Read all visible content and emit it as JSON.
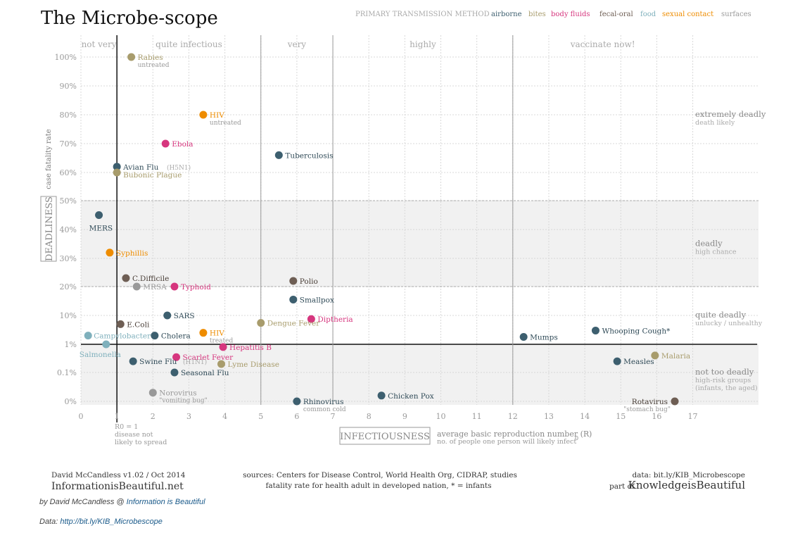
{
  "title": "The Microbe-scope",
  "legend": {
    "title": "PRIMARY TRANSMISSION METHOD",
    "items": [
      {
        "label": "airborne",
        "color": "#3d5f6f"
      },
      {
        "label": "bites",
        "color": "#a89c6c"
      },
      {
        "label": "body fluids",
        "color": "#d6367e"
      },
      {
        "label": "fecal-oral",
        "color": "#6e5e54"
      },
      {
        "label": "food",
        "color": "#7fb0bc"
      },
      {
        "label": "sexual contact",
        "color": "#ee8c00"
      },
      {
        "label": "surfaces",
        "color": "#999999"
      }
    ]
  },
  "chart_data": {
    "type": "scatter",
    "xlabel": "INFECTIOUSNESS",
    "xlabel_note": "average basic reproduction number (R",
    "xlabel_note_sub": "0",
    "xlabel_note_end": ")",
    "xlabel_note2": "no. of people one person will likely infect",
    "ylabel": "DEADLINESS",
    "ylabel_small": "case fatality rate",
    "xlim": [
      0,
      17
    ],
    "x_ticks": [
      "0",
      "1",
      "2",
      "3",
      "4",
      "5",
      "6",
      "7",
      "8",
      "9",
      "10",
      "11",
      "12",
      "13",
      "14",
      "15",
      "16",
      "17"
    ],
    "y_ticks": [
      "0%",
      "0.1%",
      "1%",
      "10%",
      "20%",
      "30%",
      "40%",
      "50%",
      "60%",
      "70%",
      "80%",
      "90%",
      "100%"
    ],
    "r0_note": [
      "R0 = 1",
      "disease not",
      "likely to spread"
    ],
    "x_zones": [
      {
        "label": "not very",
        "from": 0,
        "to": 1
      },
      {
        "label": "quite infectious",
        "from": 1,
        "to": 5
      },
      {
        "label": "very",
        "from": 5,
        "to": 7
      },
      {
        "label": "highly",
        "from": 7,
        "to": 12
      },
      {
        "label": "vaccinate now!",
        "from": 12,
        "to": 17
      }
    ],
    "y_zones": [
      {
        "label": "extremely deadly",
        "sub": "death likely",
        "at": "80%"
      },
      {
        "label": "deadly",
        "sub": "high chance",
        "at": "35%"
      },
      {
        "label": "quite deadly",
        "sub": "unlucky  / unhealthy",
        "at": "10%"
      },
      {
        "label": "not too deadly",
        "sub": "high-risk groups",
        "sub2": "(infants, the aged)",
        "at": "0.1%"
      }
    ],
    "points": [
      {
        "name": "Rabies",
        "sub": "untreated",
        "x": 1.4,
        "y": "100%",
        "t": "bites"
      },
      {
        "name": "HIV",
        "sub": "untreated",
        "x": 3.4,
        "y": "80%",
        "t": "sexual contact"
      },
      {
        "name": "Ebola",
        "x": 2.35,
        "y": "70%",
        "t": "body fluids"
      },
      {
        "name": "Tuberculosis",
        "x": 5.5,
        "y": "66%",
        "t": "airborne"
      },
      {
        "name": "Avian Flu",
        "tag": "(H5N1)",
        "x": 1.0,
        "y": "62%",
        "t": "airborne"
      },
      {
        "name": "Bubonic Plague",
        "x": 1.0,
        "y": "60%",
        "t": "bites"
      },
      {
        "name": "MERS",
        "x": 0.5,
        "y": "45%",
        "t": "airborne"
      },
      {
        "name": "Syphillis",
        "x": 0.8,
        "y": "32%",
        "t": "sexual contact"
      },
      {
        "name": "C.Difficile",
        "x": 1.25,
        "y": "23%",
        "t": "fecal-oral"
      },
      {
        "name": "MRSA",
        "x": 1.55,
        "y": "20%",
        "t": "surfaces"
      },
      {
        "name": "Typhoid",
        "x": 2.6,
        "y": "20%",
        "t": "body fluids"
      },
      {
        "name": "Polio",
        "x": 5.9,
        "y": "22%",
        "t": "fecal-oral"
      },
      {
        "name": "Smallpox",
        "x": 5.9,
        "y": "15.5%",
        "t": "airborne"
      },
      {
        "name": "SARS",
        "x": 2.4,
        "y": "10%",
        "t": "airborne"
      },
      {
        "name": "Diptheria",
        "x": 6.4,
        "y": "7.5%",
        "t": "body fluids"
      },
      {
        "name": "E.Coli",
        "x": 1.1,
        "y": "5%",
        "t": "fecal-oral"
      },
      {
        "name": "Dengue Fever",
        "x": 5.0,
        "y": "5.5%",
        "t": "bites"
      },
      {
        "name": "HIV",
        "sub": "treated",
        "x": 3.4,
        "y": "2.5%",
        "t": "sexual contact"
      },
      {
        "name": "Cholera",
        "x": 2.05,
        "y": "2%",
        "t": "airborne"
      },
      {
        "name": "Campylobacter",
        "x": 0.2,
        "y": "2%",
        "t": "food"
      },
      {
        "name": "Salmonella",
        "x": 0.7,
        "y": "1%",
        "t": "food"
      },
      {
        "name": "Mumps",
        "x": 12.3,
        "y": "1.8%",
        "t": "airborne"
      },
      {
        "name": "Whooping Cough*",
        "x": 14.3,
        "y": "3%",
        "t": "airborne"
      },
      {
        "name": "Hepatitis B",
        "x": 3.95,
        "y": "0.8%",
        "t": "body fluids"
      },
      {
        "name": "Scarlet Fever",
        "x": 2.65,
        "y": "0.35%",
        "t": "body fluids"
      },
      {
        "name": "Malaria",
        "x": 15.95,
        "y": "0.4%",
        "t": "bites"
      },
      {
        "name": "Swine Flu",
        "tag": "(H1N1)",
        "x": 1.45,
        "y": "0.25%",
        "t": "airborne"
      },
      {
        "name": "Lyme Disease",
        "x": 3.9,
        "y": "0.2%",
        "t": "bites"
      },
      {
        "name": "Measles",
        "x": 14.9,
        "y": "0.25%",
        "t": "airborne"
      },
      {
        "name": "Seasonal Flu",
        "x": 2.6,
        "y": "0.1%",
        "t": "airborne"
      },
      {
        "name": "Norovirus",
        "sub": "\"vomiting bug\"",
        "x": 2.0,
        "y": "0.03%",
        "t": "surfaces"
      },
      {
        "name": "Chicken Pox",
        "x": 8.35,
        "y": "0.02%",
        "t": "airborne"
      },
      {
        "name": "Rhinovirus",
        "sub": "common cold",
        "x": 6.0,
        "y": "0%",
        "t": "airborne"
      },
      {
        "name": "Rotavirus",
        "sub": "\"stomach bug\"",
        "x": 16.5,
        "y": "0%",
        "t": "fecal-oral"
      }
    ]
  },
  "footer": {
    "author_version": "David McCandless v1.02 / Oct 2014",
    "site": "InformationisBeautiful.net",
    "sources": "sources: Centers for Disease Control, World Health Org, CIDRAP, studies",
    "note": "fatality rate for health adult in developed nation, * = infants",
    "data_link": "data: bit.ly/KIB_Microbescope",
    "part_of": "part of",
    "kib": "KnowledgeisBeautiful"
  },
  "credit": {
    "by": "by David McCandless @ ",
    "by_link": "Information is Beautiful",
    "data": "Data: ",
    "data_link": "http://bit.ly/KIB_Microbescope"
  }
}
